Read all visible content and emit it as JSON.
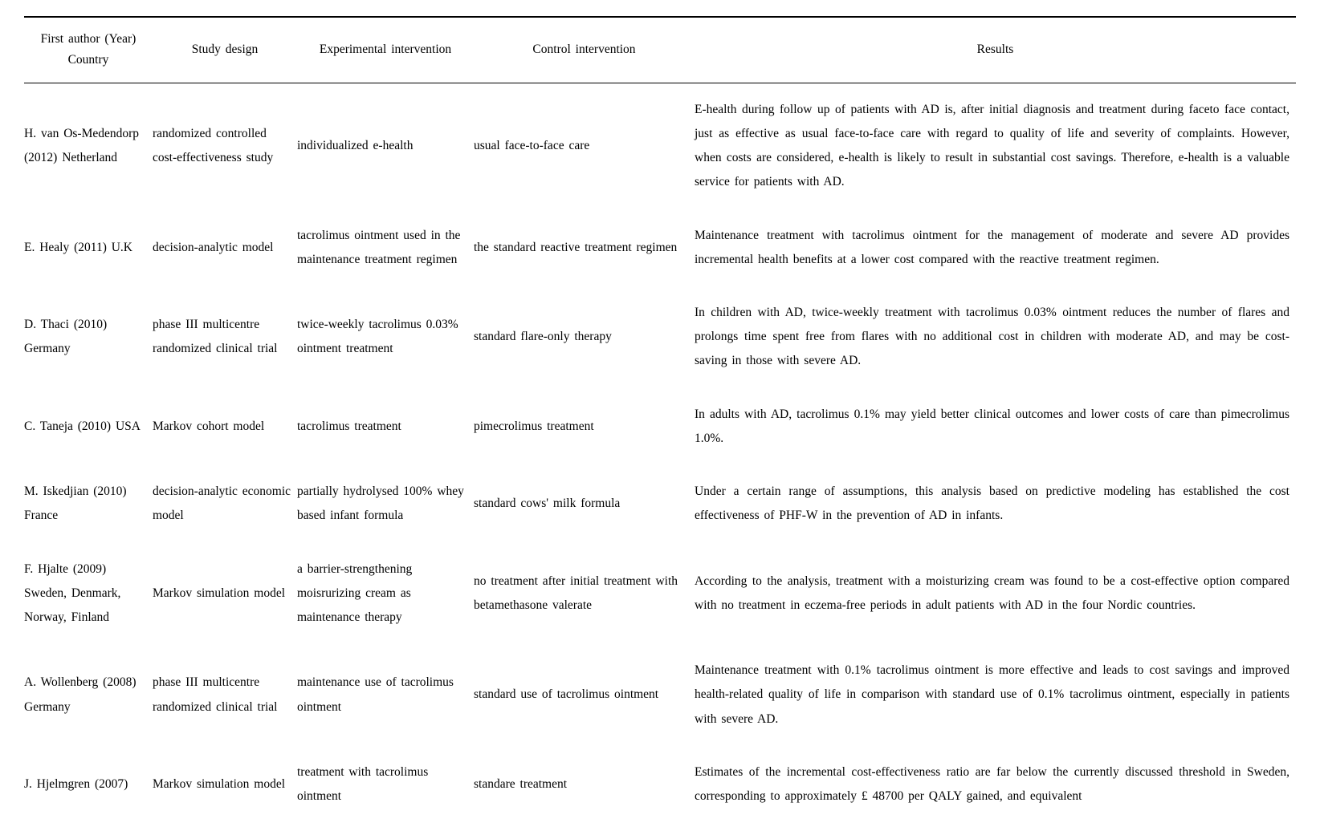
{
  "headers": {
    "author": "First author (Year) Country",
    "design": "Study design",
    "experimental": "Experimental intervention",
    "control": "Control intervention",
    "results": "Results"
  },
  "rows": [
    {
      "author": "H. van Os-Medendorp (2012) Netherland",
      "design": "randomized controlled cost-effectiveness study",
      "experimental": "individualized e-health",
      "control": "usual face-to-face care",
      "results": "E-health during follow up of patients with AD is, after initial diagnosis and treatment during faceto face contact, just as effective as usual face-to-face care with regard to quality of life and severity of complaints. However, when costs are considered, e-health is likely to result in substantial cost savings. Therefore, e-health is a valuable service for patients with AD."
    },
    {
      "author": "E. Healy (2011) U.K",
      "design": "decision-analytic model",
      "experimental": "tacrolimus ointment used in the maintenance treatment regimen",
      "control": "the standard reactive treatment regimen",
      "results": "Maintenance treatment with tacrolimus ointment for the management of moderate and severe AD provides incremental health benefits at a lower cost compared with the reactive treatment regimen."
    },
    {
      "author": "D. Thaci (2010) Germany",
      "design": "phase III multicentre randomized clinical trial",
      "experimental": "twice-weekly tacrolimus 0.03% ointment treatment",
      "control": "standard flare-only therapy",
      "results": "In children with AD, twice-weekly treatment with tacrolimus 0.03% ointment reduces the number of flares and prolongs time spent free from flares with no additional cost in children with moderate AD, and may be cost-saving in those with severe AD."
    },
    {
      "author": "C. Taneja (2010) USA",
      "design": "Markov cohort model",
      "experimental": "tacrolimus treatment",
      "control": "pimecrolimus treatment",
      "results": "In adults with AD, tacrolimus 0.1% may yield better clinical outcomes and lower costs of care than pimecrolimus 1.0%."
    },
    {
      "author": "M. Iskedjian (2010) France",
      "design": "decision-analytic economic model",
      "experimental": "partially hydrolysed 100% whey based infant formula",
      "control": "standard cows' milk formula",
      "results": "Under a certain range of assumptions, this analysis based on predictive modeling has established the cost effectiveness of PHF-W in the prevention of AD in infants."
    },
    {
      "author": "F. Hjalte (2009) Sweden, Denmark, Norway, Finland",
      "design": "Markov simulation model",
      "experimental": "a barrier-strengthening moisrurizing cream as maintenance therapy",
      "control": "no treatment after initial treatment with betamethasone valerate",
      "results": "According to the analysis, treatment with a moisturizing cream was found to be a cost-effective option compared with no treatment in eczema-free periods in adult patients with AD in the four Nordic countries."
    },
    {
      "author": "A. Wollenberg (2008) Germany",
      "design": "phase III multicentre randomized clinical trial",
      "experimental": "maintenance use of tacrolimus ointment",
      "control": "standard use of tacrolimus ointment",
      "results": "Maintenance treatment with 0.1% tacrolimus ointment is more effective and leads to cost savings and improved health-related quality of life in comparison with standard use of 0.1% tacrolimus ointment, especially in patients with severe AD."
    },
    {
      "author": "J. Hjelmgren (2007)",
      "design": "Markov simulation model",
      "experimental": "treatment with tacrolimus ointment",
      "control": "standare treatment",
      "results": "Estimates of the incremental cost-effectiveness ratio are far below the currently discussed threshold in Sweden, corresponding to approximately £ 48700 per QALY gained, and equivalent"
    }
  ]
}
